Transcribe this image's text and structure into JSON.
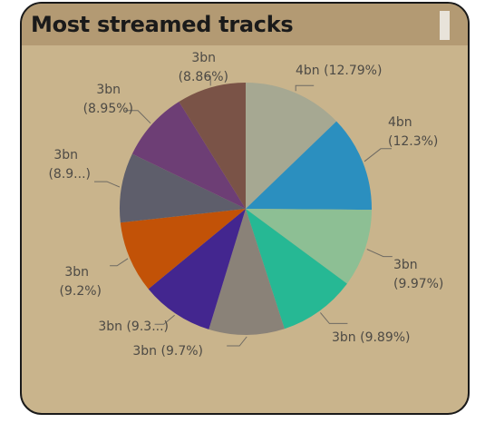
{
  "title": "Most streamed tracks",
  "colors": {
    "card_bg": "#c9b48c",
    "header_bg": "#b39a73",
    "leader": "#6e6a63",
    "label": "#4d4a45"
  },
  "chart_data": {
    "type": "pie",
    "title": "Most streamed tracks",
    "start_angle_deg": 0,
    "direction": "clockwise",
    "legend": "none",
    "slices": [
      {
        "value_label": "4bn",
        "percent": 12.79,
        "percent_label": "(12.79%)",
        "color": "#a6a892"
      },
      {
        "value_label": "4bn",
        "percent": 12.3,
        "percent_label": "(12.3%)",
        "color": "#2b8fbf"
      },
      {
        "value_label": "3bn",
        "percent": 9.97,
        "percent_label": "(9.97%)",
        "color": "#8dbf94"
      },
      {
        "value_label": "3bn",
        "percent": 9.89,
        "percent_label": "(9.89%)",
        "color": "#26b894"
      },
      {
        "value_label": "3bn",
        "percent": 9.7,
        "percent_label": "(9.7%)",
        "color": "#8a8278"
      },
      {
        "value_label": "3bn",
        "percent": 9.3,
        "percent_label": "(9.3...)",
        "color": "#43268f"
      },
      {
        "value_label": "3bn",
        "percent": 9.2,
        "percent_label": "(9.2%)",
        "color": "#c25207"
      },
      {
        "value_label": "3bn",
        "percent": 8.9,
        "percent_label": "(8.9...)",
        "color": "#5e5e6b"
      },
      {
        "value_label": "3bn",
        "percent": 8.95,
        "percent_label": "(8.95%)",
        "color": "#6d3e75"
      },
      {
        "value_label": "3bn",
        "percent": 8.86,
        "percent_label": "(8.86%)",
        "color": "#7a5347"
      }
    ]
  }
}
